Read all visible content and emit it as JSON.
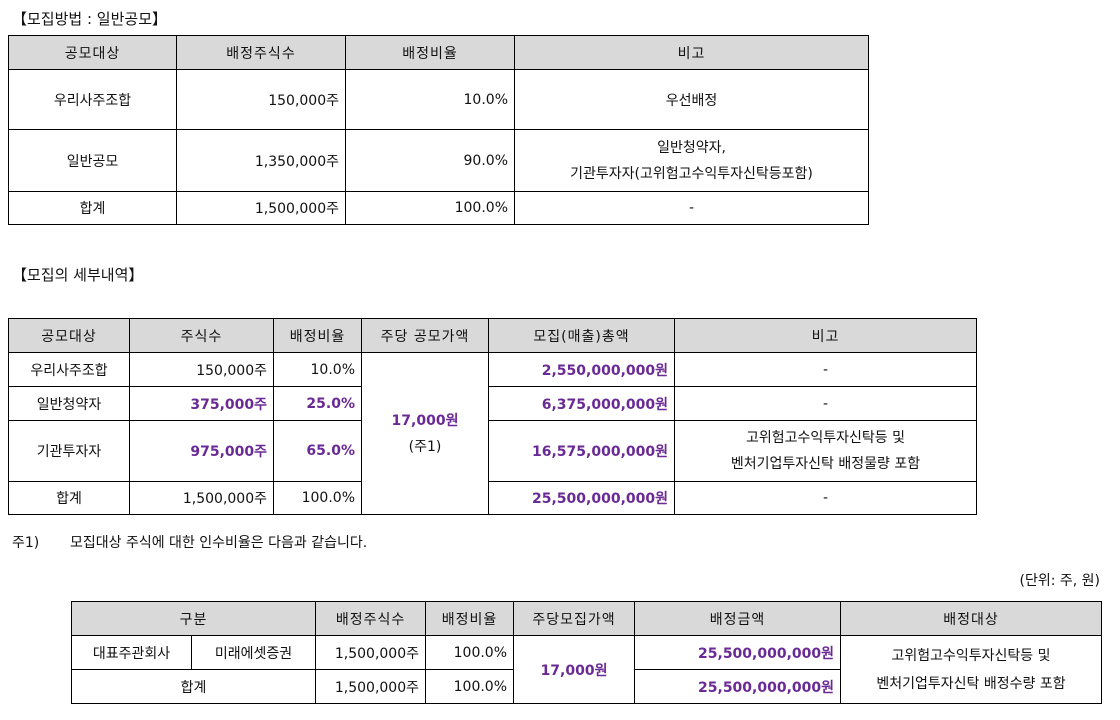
{
  "section1": {
    "title": "【모집방법 : 일반공모】",
    "headers": [
      "공모대상",
      "배정주식수",
      "배정비율",
      "비고"
    ],
    "rows": [
      {
        "target": "우리사주조합",
        "shares": "150,000주",
        "ratio": "10.0%",
        "note": "우선배정"
      },
      {
        "target": "일반공모",
        "shares": "1,350,000주",
        "ratio": "90.0%",
        "note1": "일반청약자,",
        "note2": "기관투자자(고위험고수익투자신탁등포함)"
      },
      {
        "target": "합계",
        "shares": "1,500,000주",
        "ratio": "100.0%",
        "note": "-"
      }
    ]
  },
  "section2": {
    "title": "【모집의 세부내역】",
    "headers": [
      "공모대상",
      "주식수",
      "배정비율",
      "주당 공모가액",
      "모집(매출)총액",
      "비고"
    ],
    "price": "17,000원",
    "price_note": "(주1)",
    "rows": [
      {
        "target": "우리사주조합",
        "shares": "150,000주",
        "ratio": "10.0%",
        "total": "2,550,000,000원",
        "note": "-"
      },
      {
        "target": "일반청약자",
        "shares": "375,000주",
        "ratio": "25.0%",
        "total": "6,375,000,000원",
        "note": "-"
      },
      {
        "target": "기관투자자",
        "shares": "975,000주",
        "ratio": "65.0%",
        "total": "16,575,000,000원",
        "note1": "고위험고수익투자신탁등 및",
        "note2": "벤처기업투자신탁 배정물량 포함"
      },
      {
        "target": "합계",
        "shares": "1,500,000주",
        "ratio": "100.0%",
        "total": "25,500,000,000원",
        "note": "-"
      }
    ]
  },
  "footnote": {
    "label": "주1)",
    "text": "모집대상 주식에 대한 인수비율은 다음과 같습니다."
  },
  "unit": "(단위: 주, 원)",
  "section3": {
    "headers": [
      "구분",
      "배정주식수",
      "배정비율",
      "주당모집가액",
      "배정금액",
      "배정대상"
    ],
    "row1": {
      "type": "대표주관회사",
      "name": "미래에셋증권",
      "shares": "1,500,000주",
      "ratio": "100.0%",
      "amount": "25,500,000,000원"
    },
    "price": "17,000원",
    "target1": "고위험고수익투자신탁등 및",
    "target2": "벤처기업투자신탁 배정수량 포함",
    "total": {
      "label": "합계",
      "shares": "1,500,000주",
      "ratio": "100.0%",
      "amount": "25,500,000,000원"
    }
  }
}
